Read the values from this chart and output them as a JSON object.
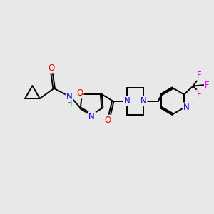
{
  "background_color": "#e8e8e8",
  "fig_size": [
    3.0,
    3.0
  ],
  "dpi": 100,
  "atom_colors": {
    "C": "#000000",
    "N": "#0000dd",
    "O": "#dd0000",
    "F": "#ee00ee",
    "H": "#008888"
  },
  "bond_color": "#000000",
  "bond_width": 1.4,
  "font_size_atom": 8.5,
  "font_size_small": 7.0
}
